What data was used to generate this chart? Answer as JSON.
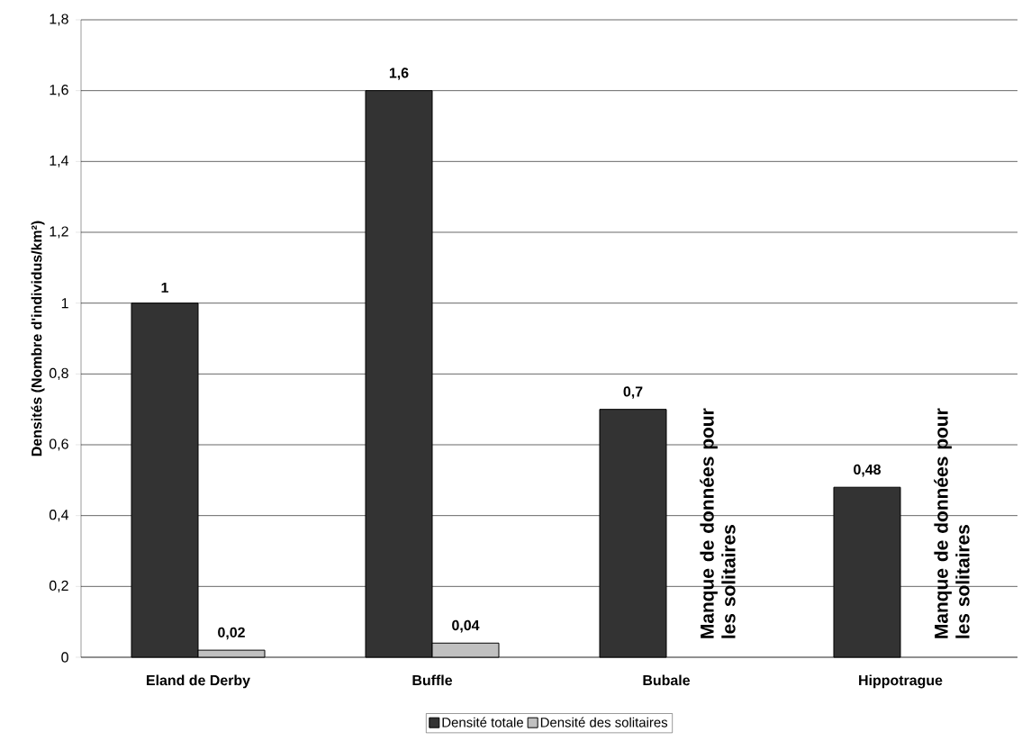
{
  "chart_data": {
    "type": "bar",
    "ylabel": "Densités (Nombre d'individus/km²)",
    "categories": [
      "Eland de Derby",
      "Buffle",
      "Bubale",
      "Hippotrague"
    ],
    "series": [
      {
        "name": "Densité totale",
        "color": "#333333",
        "values": [
          1,
          1.6,
          0.7,
          0.48
        ],
        "value_labels": [
          "1",
          "1,6",
          "0,7",
          "0,48"
        ]
      },
      {
        "name": "Densité des solitaires",
        "color": "#c0c0c0",
        "values": [
          0.02,
          0.04,
          null,
          null
        ],
        "value_labels": [
          "0,02",
          "0,04",
          null,
          null
        ]
      }
    ],
    "ylim": [
      0,
      1.8
    ],
    "yticks": [
      0,
      {
        "value": 0.2,
        "label": "0,2"
      },
      {
        "value": 0.4,
        "label": "0,4"
      },
      {
        "value": 0.6,
        "label": "0,6"
      },
      {
        "value": 0.8,
        "label": "0,8"
      },
      1,
      {
        "value": 1.2,
        "label": "1,2"
      },
      {
        "value": 1.4,
        "label": "1,4"
      },
      {
        "value": 1.6,
        "label": "1,6"
      },
      {
        "value": 1.8,
        "label": "1,8"
      }
    ],
    "grid": "y",
    "legend": "bottom",
    "annotations": [
      "Manque de données pour les solitaires",
      "Manque de données pour les solitaires"
    ]
  }
}
